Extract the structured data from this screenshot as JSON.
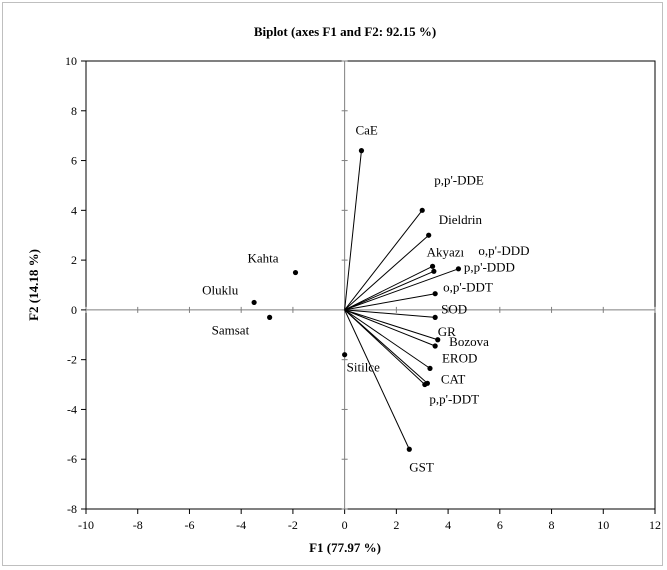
{
  "chart_data": {
    "type": "scatter",
    "title": "Biplot (axes F1 and F2: 92.15 %)",
    "xlabel": "F1 (77.97 %)",
    "ylabel": "F2 (14.18 %)",
    "xlim": [
      -10,
      12
    ],
    "ylim": [
      -8,
      10
    ],
    "xticks": [
      -10,
      -8,
      -6,
      -4,
      -2,
      0,
      2,
      4,
      6,
      8,
      10,
      12
    ],
    "yticks": [
      -8,
      -6,
      -4,
      -2,
      0,
      2,
      4,
      6,
      8,
      10
    ],
    "grid": false,
    "observations": [
      {
        "label": "Kahta",
        "x": -1.9,
        "y": 1.5
      },
      {
        "label": "Oluklu",
        "x": -3.5,
        "y": 0.3
      },
      {
        "label": "Samsat",
        "x": -2.9,
        "y": -0.3
      },
      {
        "label": "Sitilce",
        "x": 0.0,
        "y": -1.8
      }
    ],
    "variables": [
      {
        "label": "CaE",
        "x": 0.65,
        "y": 6.4
      },
      {
        "label": "p,p'-DDE",
        "x": 3.0,
        "y": 4.0
      },
      {
        "label": "Dieldrin",
        "x": 3.25,
        "y": 3.0
      },
      {
        "label": "Akyazı",
        "x": 3.4,
        "y": 1.75
      },
      {
        "label": "o,p'-DDD",
        "x": 4.4,
        "y": 1.65
      },
      {
        "label": "p,p'-DDD",
        "x": 3.45,
        "y": 1.55
      },
      {
        "label": "o,p'-DDT",
        "x": 3.5,
        "y": 0.65
      },
      {
        "label": "SOD",
        "x": 3.5,
        "y": -0.3
      },
      {
        "label": "GR",
        "x": 3.6,
        "y": -1.2
      },
      {
        "label": "Bozova",
        "x": 3.5,
        "y": -1.45
      },
      {
        "label": "EROD",
        "x": 3.3,
        "y": -2.35
      },
      {
        "label": "CAT",
        "x": 3.1,
        "y": -3.0
      },
      {
        "label": "p,p'-DDT",
        "x": 3.2,
        "y": -2.95
      },
      {
        "label": "GST",
        "x": 2.5,
        "y": -5.6
      }
    ]
  }
}
